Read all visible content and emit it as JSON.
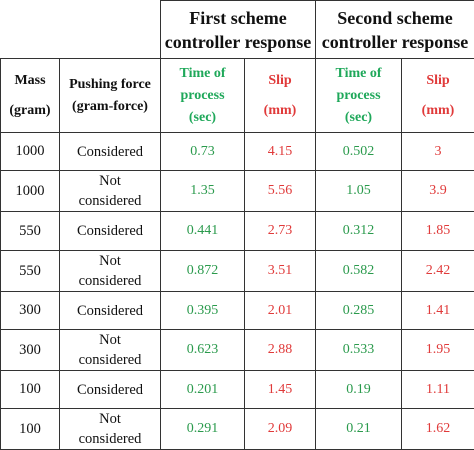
{
  "header": {
    "scheme1": [
      "First scheme",
      "controller response"
    ],
    "scheme2": [
      "Second scheme",
      "controller response"
    ],
    "mass": [
      "Mass",
      "(gram)"
    ],
    "pushing": [
      "Pushing force",
      "(gram-force)"
    ],
    "time1": [
      "Time of",
      "process",
      "(sec)"
    ],
    "slip1": [
      "Slip",
      "(mm)"
    ],
    "time2": [
      "Time of",
      "process",
      "(sec)"
    ],
    "slip2": [
      "Slip",
      "(mm)"
    ]
  },
  "colors": {
    "green": "#2a9a4c",
    "red": "#e03a3a"
  },
  "rows": [
    {
      "mass": "1000",
      "force": [
        "Considered"
      ],
      "t1": "0.73",
      "s1": "4.15",
      "t2": "0.502",
      "s2": "3"
    },
    {
      "mass": "1000",
      "force": [
        "Not",
        "considered"
      ],
      "t1": "1.35",
      "s1": "5.56",
      "t2": "1.05",
      "s2": "3.9"
    },
    {
      "mass": "550",
      "force": [
        "Considered"
      ],
      "t1": "0.441",
      "s1": "2.73",
      "t2": "0.312",
      "s2": "1.85"
    },
    {
      "mass": "550",
      "force": [
        "Not",
        "considered"
      ],
      "t1": "0.872",
      "s1": "3.51",
      "t2": "0.582",
      "s2": "2.42"
    },
    {
      "mass": "300",
      "force": [
        "Considered"
      ],
      "t1": "0.395",
      "s1": "2.01",
      "t2": "0.285",
      "s2": "1.41"
    },
    {
      "mass": "300",
      "force": [
        "Not",
        "considered"
      ],
      "t1": "0.623",
      "s1": "2.88",
      "t2": "0.533",
      "s2": "1.95"
    },
    {
      "mass": "100",
      "force": [
        "Considered"
      ],
      "t1": "0.201",
      "s1": "1.45",
      "t2": "0.19",
      "s2": "1.11"
    },
    {
      "mass": "100",
      "force": [
        "Not",
        "considered"
      ],
      "t1": "0.291",
      "s1": "2.09",
      "t2": "0.21",
      "s2": "1.62"
    }
  ]
}
